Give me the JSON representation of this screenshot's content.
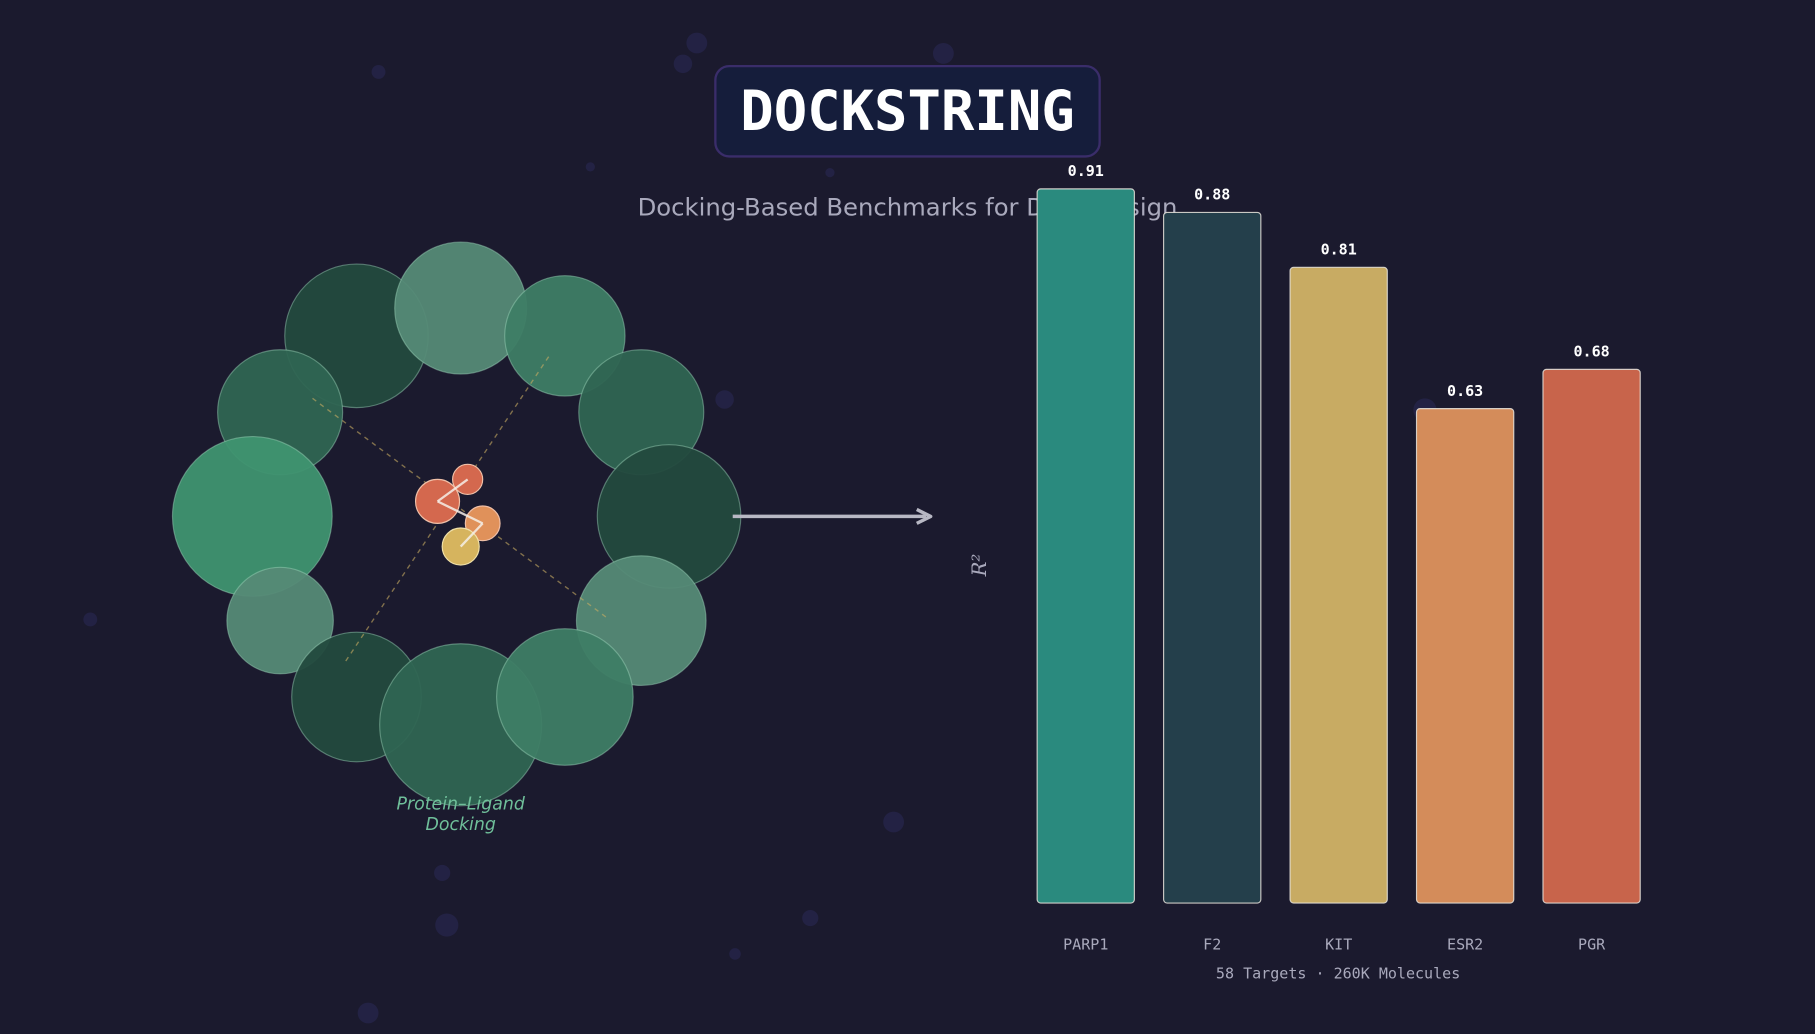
{
  "title": "DOCKSTRING",
  "subtitle": "Docking-Based Benchmarks for Drug Design",
  "diagram": {
    "label_line1": "Protein–Ligand",
    "label_line2": "Docking"
  },
  "chart_data": {
    "type": "bar",
    "categories": [
      "PARP1",
      "F2",
      "KIT",
      "ESR2",
      "PGR"
    ],
    "values": [
      0.91,
      0.88,
      0.81,
      0.63,
      0.68
    ],
    "value_labels": [
      "0.91",
      "0.88",
      "0.81",
      "0.63",
      "0.68"
    ],
    "colors": [
      "#2a8a7e",
      "#243f4b",
      "#c8ab63",
      "#d48c5a",
      "#c8644b"
    ],
    "ylabel": "R²",
    "ylim": [
      0,
      1
    ],
    "grid": false,
    "footnote": "58 Targets · 260K Molecules"
  },
  "colors": {
    "background": "#1b1a2e",
    "title_box": "#151d3b",
    "accent_green": "#6fbf9a"
  }
}
